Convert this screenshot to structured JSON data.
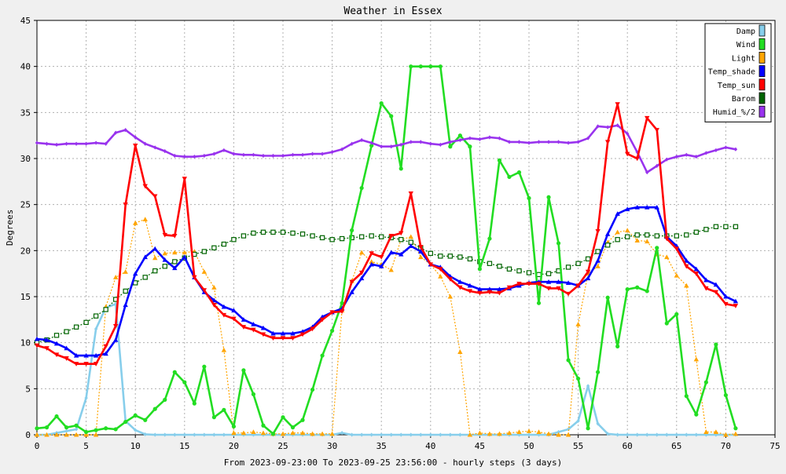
{
  "chart_data": {
    "type": "line",
    "title": "Weather in Essex",
    "xlabel": "From 2023-09-23:00 To 2023-09-25 23:56:00 - hourly steps (3 days)",
    "ylabel": "Degrees",
    "xlim": [
      0,
      75
    ],
    "ylim": [
      0,
      45
    ],
    "xticks": [
      0,
      5,
      10,
      15,
      20,
      25,
      30,
      35,
      40,
      45,
      50,
      55,
      60,
      65,
      70,
      75
    ],
    "yticks": [
      0,
      5,
      10,
      15,
      20,
      25,
      30,
      35,
      40,
      45
    ],
    "grid": true,
    "legend_position": "top-right",
    "x": [
      0,
      1,
      2,
      3,
      4,
      5,
      6,
      7,
      8,
      9,
      10,
      11,
      12,
      13,
      14,
      15,
      16,
      17,
      18,
      19,
      20,
      21,
      22,
      23,
      24,
      25,
      26,
      27,
      28,
      29,
      30,
      31,
      32,
      33,
      34,
      35,
      36,
      37,
      38,
      39,
      40,
      41,
      42,
      43,
      44,
      45,
      46,
      47,
      48,
      49,
      50,
      51,
      52,
      53,
      54,
      55,
      56,
      57,
      58,
      59,
      60,
      61,
      62,
      63,
      64,
      65,
      66,
      67,
      68,
      69,
      70,
      71
    ],
    "series": [
      {
        "name": "Damp",
        "color": "#87ceeb",
        "marker": "diamond",
        "dashed": false,
        "values": [
          0,
          0,
          0.2,
          0.4,
          0.6,
          4,
          11.5,
          13.8,
          14.2,
          1.5,
          0.5,
          0.05,
          0,
          0,
          0,
          0,
          0,
          0,
          0,
          0,
          0,
          0,
          0,
          0,
          0,
          0,
          0,
          0,
          0,
          0,
          0,
          0.2,
          0,
          0,
          0,
          0,
          0,
          0,
          0,
          0,
          0,
          0,
          0,
          0,
          0,
          0,
          0,
          0,
          0,
          0,
          0,
          0,
          0,
          0.3,
          0.6,
          1.5,
          5.3,
          1.2,
          0.1,
          0,
          0,
          0,
          0,
          0,
          0,
          0,
          0,
          0,
          0,
          0,
          0,
          0
        ]
      },
      {
        "name": "Wind",
        "color": "#22dd22",
        "marker": "circle",
        "dashed": false,
        "values": [
          0.7,
          0.8,
          2.0,
          0.8,
          1.0,
          0.3,
          0.5,
          0.7,
          0.6,
          1.4,
          2.1,
          1.6,
          2.8,
          3.8,
          6.8,
          5.7,
          3.4,
          7.4,
          1.9,
          2.7,
          0.9,
          7.0,
          4.4,
          1.0,
          0.1,
          1.9,
          0.8,
          1.6,
          4.9,
          8.6,
          11.3,
          14.3,
          22.2,
          26.8,
          31.4,
          36.0,
          34.6,
          28.9,
          40.0,
          40.0,
          40.0,
          40.0,
          31.3,
          32.5,
          31.3,
          18.0,
          21.3,
          29.8,
          28.0,
          28.5,
          25.7,
          14.3,
          25.8,
          20.8,
          8.1,
          6.1,
          0.7,
          6.8,
          14.9,
          9.6,
          15.8,
          16.0,
          15.6,
          20.3,
          12.1,
          13.1,
          4.2,
          2.2,
          5.7,
          9.8,
          4.3,
          0.7
        ]
      },
      {
        "name": "Light",
        "color": "#ffa500",
        "marker": "triangle",
        "dashed": true,
        "values": [
          0,
          0,
          0,
          0,
          0,
          0,
          0,
          13.9,
          17.1,
          17.7,
          23.0,
          23.4,
          19.2,
          19.7,
          19.8,
          19.8,
          19.9,
          17.7,
          16.0,
          9.2,
          0.2,
          0.2,
          0.3,
          0.2,
          0.1,
          0.1,
          0.2,
          0.2,
          0.1,
          0.1,
          0.1,
          13.5,
          16.7,
          19.8,
          18.8,
          18.5,
          17.9,
          21.2,
          21.5,
          19.3,
          18.5,
          17.2,
          15.0,
          9.0,
          0,
          0.2,
          0.1,
          0.1,
          0.2,
          0.3,
          0.4,
          0.3,
          0.1,
          0,
          0,
          12.0,
          17.5,
          18.3,
          20.9,
          22.0,
          22.2,
          21.1,
          21.0,
          19.6,
          19.3,
          17.3,
          16.2,
          8.2,
          0.3,
          0.3,
          0,
          0.1
        ]
      },
      {
        "name": "Temp_shade",
        "color": "#0000ff",
        "marker": "triangle",
        "dashed": false,
        "values": [
          10.4,
          10.3,
          9.9,
          9.4,
          8.6,
          8.6,
          8.6,
          8.8,
          10.3,
          14.1,
          17.5,
          19.3,
          20.2,
          19.0,
          18.1,
          19.3,
          17.1,
          15.5,
          14.6,
          13.9,
          13.5,
          12.5,
          12.0,
          11.6,
          11.0,
          11.0,
          11.0,
          11.2,
          11.7,
          12.8,
          13.3,
          13.7,
          15.5,
          17.0,
          18.5,
          18.3,
          19.8,
          19.6,
          20.5,
          19.9,
          18.5,
          18.2,
          17.2,
          16.6,
          16.2,
          15.8,
          15.8,
          15.8,
          15.9,
          16.2,
          16.5,
          16.6,
          16.6,
          16.6,
          16.5,
          16.2,
          17.0,
          18.9,
          21.8,
          24.0,
          24.5,
          24.7,
          24.7,
          24.7,
          21.5,
          20.5,
          18.9,
          18.0,
          16.8,
          16.3,
          15.0,
          14.5
        ]
      },
      {
        "name": "Temp_sun",
        "color": "#ff0000",
        "marker": "triangle-down",
        "dashed": false,
        "values": [
          9.7,
          9.4,
          8.7,
          8.3,
          7.7,
          7.7,
          7.7,
          9.6,
          11.8,
          25.0,
          31.4,
          27.0,
          25.9,
          21.7,
          21.6,
          27.8,
          17.1,
          15.7,
          14.1,
          13.0,
          12.6,
          11.7,
          11.4,
          10.9,
          10.5,
          10.5,
          10.5,
          10.9,
          11.5,
          12.5,
          13.3,
          13.4,
          16.6,
          17.6,
          19.7,
          19.3,
          21.6,
          21.9,
          26.2,
          20.4,
          18.5,
          18.0,
          16.9,
          16.0,
          15.6,
          15.4,
          15.5,
          15.4,
          16.0,
          16.4,
          16.4,
          16.4,
          15.9,
          15.9,
          15.3,
          16.2,
          17.7,
          22.1,
          31.8,
          35.9,
          30.5,
          30.0,
          34.4,
          33.1,
          21.3,
          20.2,
          18.3,
          17.5,
          15.9,
          15.5,
          14.2,
          14.0
        ]
      },
      {
        "name": "Barom",
        "color": "#006400",
        "marker": "square",
        "dashed": true,
        "values": [
          10.0,
          10.3,
          10.8,
          11.2,
          11.7,
          12.2,
          12.9,
          13.6,
          14.7,
          15.6,
          16.5,
          17.1,
          17.8,
          18.3,
          18.8,
          19.2,
          19.6,
          19.9,
          20.3,
          20.7,
          21.2,
          21.6,
          21.9,
          22.0,
          22.0,
          22.0,
          21.9,
          21.8,
          21.6,
          21.4,
          21.2,
          21.3,
          21.4,
          21.5,
          21.6,
          21.5,
          21.4,
          21.2,
          20.9,
          20.3,
          19.7,
          19.4,
          19.4,
          19.3,
          19.1,
          18.8,
          18.6,
          18.3,
          18.0,
          17.8,
          17.6,
          17.4,
          17.5,
          17.8,
          18.2,
          18.6,
          19.1,
          19.9,
          20.6,
          21.2,
          21.5,
          21.7,
          21.7,
          21.6,
          21.6,
          21.6,
          21.7,
          22.0,
          22.3,
          22.6,
          22.6,
          22.6
        ]
      },
      {
        "name": "Humid_%/2",
        "color": "#9933ee",
        "marker": "diamond",
        "dashed": false,
        "values": [
          31.7,
          31.6,
          31.5,
          31.6,
          31.6,
          31.6,
          31.7,
          31.6,
          32.8,
          33.1,
          32.3,
          31.6,
          31.2,
          30.8,
          30.3,
          30.2,
          30.2,
          30.3,
          30.5,
          30.9,
          30.5,
          30.4,
          30.4,
          30.3,
          30.3,
          30.3,
          30.4,
          30.4,
          30.5,
          30.5,
          30.7,
          31.0,
          31.6,
          32.0,
          31.7,
          31.3,
          31.3,
          31.5,
          31.8,
          31.8,
          31.6,
          31.5,
          31.8,
          32.0,
          32.2,
          32.1,
          32.3,
          32.2,
          31.8,
          31.8,
          31.7,
          31.8,
          31.8,
          31.8,
          31.7,
          31.8,
          32.2,
          33.5,
          33.4,
          33.6,
          32.7,
          30.7,
          28.5,
          29.2,
          29.9,
          30.2,
          30.4,
          30.2,
          30.6,
          30.9,
          31.2,
          31.0
        ]
      }
    ]
  }
}
